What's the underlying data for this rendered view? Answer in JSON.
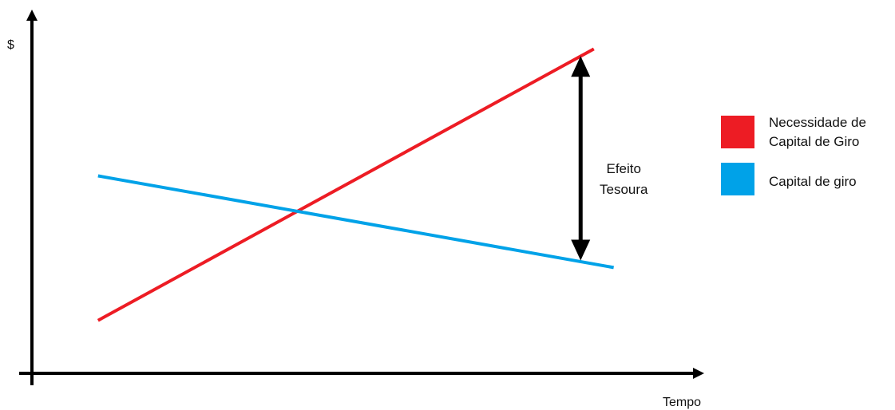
{
  "chart_data": {
    "type": "line",
    "title": "",
    "ylabel": "$",
    "xlabel": "Tempo",
    "xlim": [
      0,
      10
    ],
    "ylim": [
      0,
      10
    ],
    "grid": false,
    "legend_position": "right",
    "series": [
      {
        "name": "Necessidade de Capital de Giro",
        "legend_lines": [
          "Necessidade de",
          "Capital de Giro"
        ],
        "color": "#ed1c24",
        "points": [
          [
            1,
            1.5
          ],
          [
            8.5,
            9.2
          ]
        ]
      },
      {
        "name": "Capital de giro",
        "legend_lines": [
          "Capital de giro"
        ],
        "color": "#00a2e8",
        "points": [
          [
            1,
            5.6
          ],
          [
            8.8,
            3.0
          ]
        ]
      }
    ],
    "annotation": {
      "lines": [
        "Efeito",
        "Tesoura"
      ],
      "x": 8.3,
      "y_from": 3.2,
      "y_to": 9.0
    }
  }
}
